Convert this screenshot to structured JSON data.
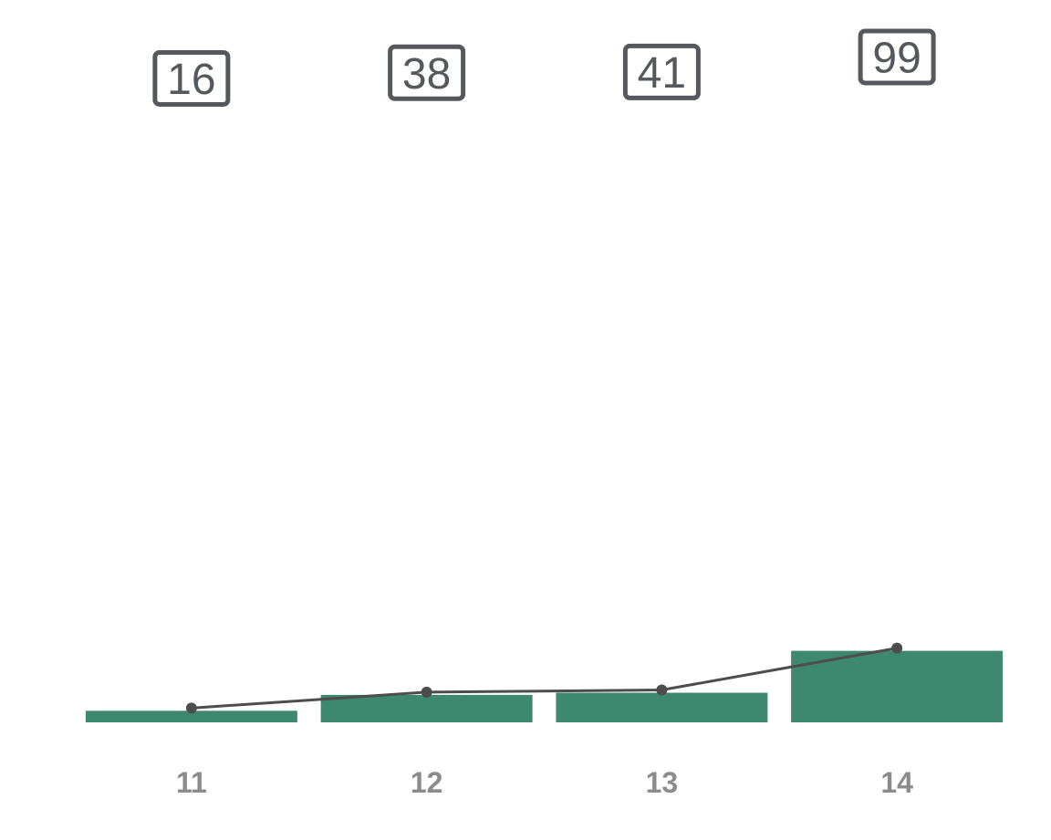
{
  "chart_data": {
    "type": "bar",
    "categories": [
      "11",
      "12",
      "13",
      "14"
    ],
    "values": [
      16,
      38,
      41,
      99
    ],
    "series": [
      {
        "values": [
          16,
          38,
          41,
          99
        ]
      }
    ],
    "overlay": "line",
    "data_labels_boxed": true,
    "xlabel": "",
    "ylabel": "",
    "ylim": [
      0,
      1000
    ],
    "grid": false,
    "colors": {
      "bar": "#3f8870",
      "line": "#4d4d4d",
      "marker": "#4d4d4d",
      "label_box": "#55585c",
      "tick_text": "#8c8c8c"
    }
  }
}
